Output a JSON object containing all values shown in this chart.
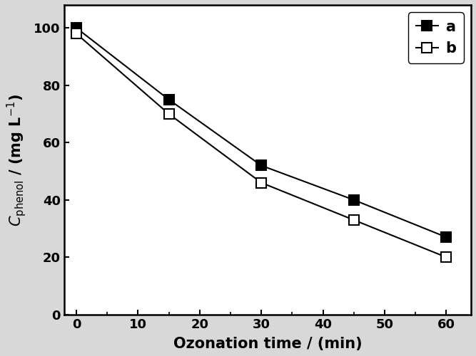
{
  "series_a": {
    "x": [
      0,
      15,
      30,
      45,
      60
    ],
    "y": [
      100,
      75,
      52,
      40,
      27
    ],
    "label": "a",
    "marker": "s",
    "filled": true
  },
  "series_b": {
    "x": [
      0,
      15,
      30,
      45,
      60
    ],
    "y": [
      98,
      70,
      46,
      33,
      20
    ],
    "label": "b",
    "marker": "s",
    "filled": false
  },
  "xlabel": "Ozonation time / (min)",
  "ylabel": "$C$$_{\\mathrm{phenol}}$ / (mg L$^{-1}$)",
  "xlim": [
    -2,
    64
  ],
  "ylim": [
    0,
    108
  ],
  "xticks": [
    0,
    10,
    20,
    30,
    40,
    50,
    60
  ],
  "yticks": [
    0,
    20,
    40,
    60,
    80,
    100
  ],
  "xlabel_fontsize": 15,
  "ylabel_fontsize": 15,
  "tick_fontsize": 13,
  "legend_fontsize": 15,
  "marker_size": 10,
  "linewidth": 1.5,
  "background_color": "#ffffff",
  "fig_facecolor": "#d8d8d8"
}
